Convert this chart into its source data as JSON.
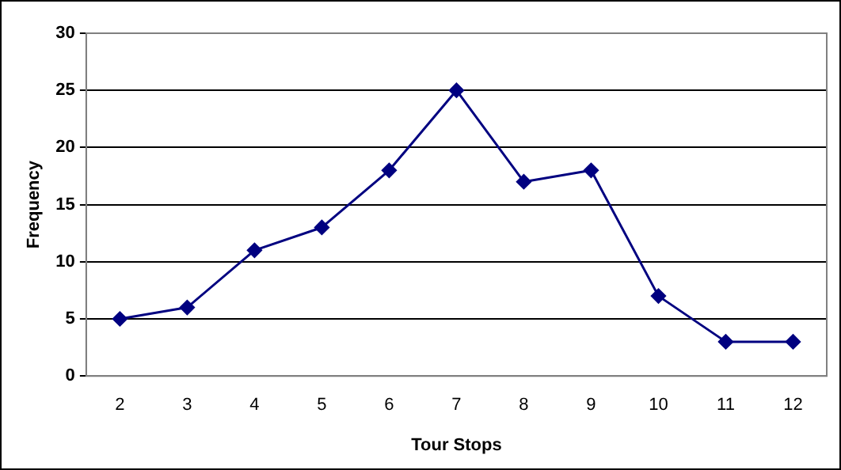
{
  "chart_data": {
    "type": "line",
    "xlabel": "Tour Stops",
    "ylabel": "Frequency",
    "categories": [
      "2",
      "3",
      "4",
      "5",
      "6",
      "7",
      "8",
      "9",
      "10",
      "11",
      "12"
    ],
    "values": [
      5,
      6,
      11,
      13,
      18,
      25,
      17,
      18,
      7,
      3,
      3
    ],
    "color": "#000080",
    "marker": "diamond",
    "line_style": "solid",
    "ylim": [
      0,
      30
    ],
    "yticks": [
      0,
      5,
      10,
      15,
      20,
      25,
      30
    ],
    "grid": "y"
  }
}
